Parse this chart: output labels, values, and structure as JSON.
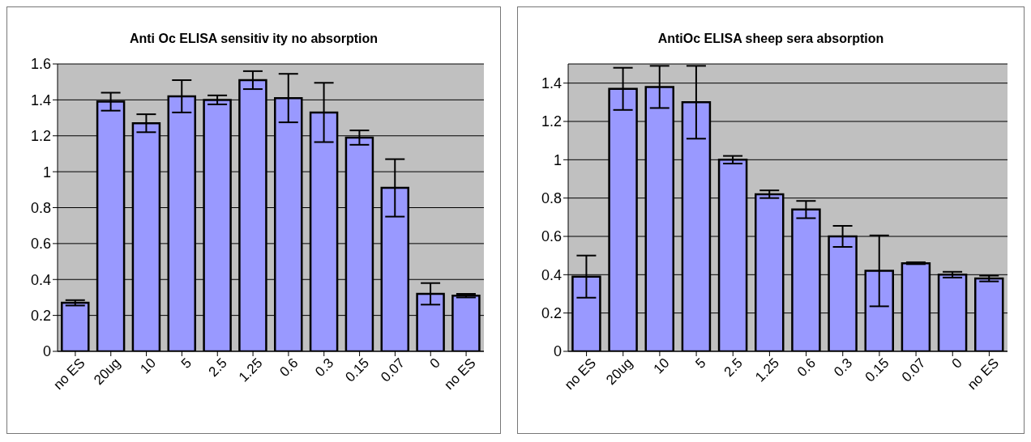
{
  "chart_data": [
    {
      "type": "bar",
      "title": "Anti Oc ELISA sensitiv ity no absorption",
      "categories": [
        "no ES",
        "20ug",
        "10",
        "5",
        "2.5",
        "1.25",
        "0.6",
        "0.3",
        "0.15",
        "0.07",
        "0",
        "no ES"
      ],
      "color": "#9999ff",
      "values": [
        0.27,
        1.39,
        1.27,
        1.42,
        1.4,
        1.51,
        1.41,
        1.33,
        1.19,
        0.91,
        0.32,
        0.31
      ],
      "errors": [
        0.015,
        0.05,
        0.05,
        0.09,
        0.025,
        0.05,
        0.135,
        0.165,
        0.04,
        0.16,
        0.06,
        0.01
      ],
      "ylim": [
        0,
        1.6
      ],
      "yticks": [
        0,
        0.2,
        0.4,
        0.6,
        0.8,
        1,
        1.2,
        1.4,
        1.6
      ],
      "grid": "y",
      "legend": false
    },
    {
      "type": "bar",
      "title": "AntiOc ELISA sheep sera absorption",
      "categories": [
        "no ES",
        "20ug",
        "10",
        "5",
        "2.5",
        "1.25",
        "0.6",
        "0.3",
        "0.15",
        "0.07",
        "0",
        "no ES"
      ],
      "color": "#9999ff",
      "values": [
        0.39,
        1.37,
        1.38,
        1.3,
        1.0,
        0.82,
        0.74,
        0.6,
        0.42,
        0.46,
        0.4,
        0.38
      ],
      "errors": [
        0.11,
        0.11,
        0.11,
        0.19,
        0.02,
        0.02,
        0.045,
        0.055,
        0.185,
        0.005,
        0.015,
        0.015
      ],
      "ylim": [
        0,
        1.5
      ],
      "yticks": [
        0,
        0.2,
        0.4,
        0.6,
        0.8,
        1,
        1.2,
        1.4
      ],
      "grid": "y",
      "legend": false
    }
  ]
}
